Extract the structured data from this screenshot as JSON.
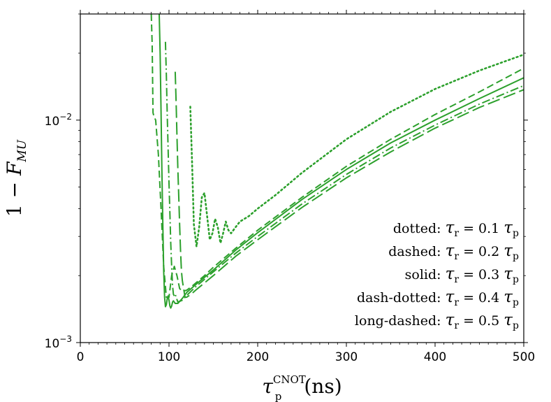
{
  "chart_data": {
    "type": "line",
    "title": "",
    "xlabel": {
      "base": "τ",
      "sub": "p",
      "sup": "CNOT",
      "unit": "(ns)"
    },
    "ylabel": {
      "prefix": "1 − ",
      "base": "F",
      "sub": "MU"
    },
    "xlim": [
      0,
      500
    ],
    "ylim": [
      0.001,
      0.03
    ],
    "yscale": "log",
    "x_ticks": [
      "0",
      "100",
      "200",
      "300",
      "400",
      "500"
    ],
    "y_ticks": [
      {
        "value": 0.01,
        "label": "10",
        "exp": "−2"
      },
      {
        "value": 0.001,
        "label": "10",
        "exp": "−3"
      }
    ],
    "color": "#2ca02c",
    "grid": false,
    "legend_position": "bottom-right",
    "series": [
      {
        "name": "dotted: τr = 0.1 τp",
        "legend": {
          "style": "dotted:",
          "lhs": "τ",
          "lsub": "r",
          "eq": " = 0.1 ",
          "rhs": "τ",
          "rsub": "p"
        },
        "dash": "2,4",
        "x": [
          124,
          126,
          128,
          131,
          134,
          137,
          140,
          143,
          146,
          149,
          152,
          155,
          158,
          161,
          164,
          167,
          170,
          175,
          180,
          190,
          200,
          220,
          250,
          300,
          350,
          400,
          450,
          500
        ],
        "y": [
          0.0115,
          0.0065,
          0.0034,
          0.0027,
          0.0033,
          0.0045,
          0.0047,
          0.0037,
          0.0029,
          0.0031,
          0.0036,
          0.0033,
          0.0028,
          0.0031,
          0.0035,
          0.0032,
          0.0031,
          0.0033,
          0.0035,
          0.0037,
          0.004,
          0.0046,
          0.0058,
          0.0082,
          0.0109,
          0.0138,
          0.0167,
          0.0197
        ]
      },
      {
        "name": "dashed: τr = 0.2 τp",
        "legend": {
          "style": "dashed:",
          "lhs": "τ",
          "lsub": "r",
          "eq": " = 0.2 ",
          "rhs": "τ",
          "rsub": "p"
        },
        "dash": "10,5",
        "x": [
          80,
          81,
          82,
          83,
          85,
          88,
          91,
          94,
          97,
          100,
          103,
          106,
          109,
          112,
          115,
          120,
          125,
          130,
          140,
          150,
          175,
          200,
          250,
          300,
          350,
          400,
          450,
          500
        ],
        "y": [
          0.03,
          0.022,
          0.0108,
          0.0104,
          0.01,
          0.007,
          0.004,
          0.0022,
          0.0016,
          0.0016,
          0.002,
          0.0022,
          0.002,
          0.00175,
          0.0017,
          0.00172,
          0.00178,
          0.00185,
          0.002,
          0.00218,
          0.00265,
          0.0032,
          0.0045,
          0.0062,
          0.0082,
          0.0106,
          0.0134,
          0.0171
        ]
      },
      {
        "name": "solid: τr = 0.3 τp",
        "legend": {
          "style": "solid:",
          "lhs": "τ",
          "lsub": "r",
          "eq": " = 0.3 ",
          "rhs": "τ",
          "rsub": "p"
        },
        "dash": "",
        "x": [
          89,
          90,
          91,
          92,
          93,
          94,
          95,
          96,
          97,
          98,
          99,
          100,
          101,
          102,
          103,
          104,
          105,
          107,
          110,
          115,
          120,
          130,
          150,
          175,
          200,
          250,
          300,
          350,
          400,
          450,
          500
        ],
        "y": [
          0.03,
          0.02,
          0.011,
          0.006,
          0.0035,
          0.0021,
          0.0016,
          0.00145,
          0.00148,
          0.00158,
          0.00162,
          0.00155,
          0.00146,
          0.00143,
          0.00146,
          0.00152,
          0.00154,
          0.0015,
          0.0015,
          0.00158,
          0.00168,
          0.00182,
          0.00212,
          0.0026,
          0.00312,
          0.0044,
          0.006,
          0.0079,
          0.01,
          0.0125,
          0.0155
        ]
      },
      {
        "name": "dash-dotted: τr = 0.4 τp",
        "legend": {
          "style": "dash-dotted:",
          "lhs": "τ",
          "lsub": "r",
          "eq": " = 0.4 ",
          "rhs": "τ",
          "rsub": "p"
        },
        "dash": "12,4,2,4",
        "x": [
          96,
          97,
          98,
          99,
          100,
          101,
          102,
          103,
          104,
          105,
          106,
          107,
          108,
          110,
          115,
          120,
          130,
          150,
          175,
          200,
          250,
          300,
          350,
          400,
          450,
          500
        ],
        "y": [
          0.0225,
          0.016,
          0.0105,
          0.0075,
          0.0052,
          0.0038,
          0.0028,
          0.0022,
          0.0018,
          0.00165,
          0.00162,
          0.00165,
          0.0016,
          0.00152,
          0.00155,
          0.00163,
          0.00178,
          0.00208,
          0.00252,
          0.003,
          0.0042,
          0.0057,
          0.0075,
          0.0095,
          0.0118,
          0.0143
        ]
      },
      {
        "name": "long-dashed: τr = 0.5 τp",
        "legend": {
          "style": "long-dashed:",
          "lhs": "τ",
          "lsub": "r",
          "eq": " = 0.5 ",
          "rhs": "τ",
          "rsub": "p"
        },
        "dash": "18,6",
        "x": [
          107,
          108,
          109,
          110,
          111,
          112,
          113,
          114,
          115,
          116,
          117,
          118,
          120,
          125,
          130,
          150,
          175,
          200,
          250,
          300,
          350,
          400,
          450,
          500
        ],
        "y": [
          0.0165,
          0.012,
          0.0085,
          0.006,
          0.0045,
          0.0034,
          0.0026,
          0.0021,
          0.0019,
          0.0018,
          0.0017,
          0.0016,
          0.0016,
          0.00165,
          0.00172,
          0.002,
          0.00244,
          0.0029,
          0.00405,
          0.0055,
          0.0072,
          0.0092,
          0.0114,
          0.0137
        ]
      }
    ]
  }
}
